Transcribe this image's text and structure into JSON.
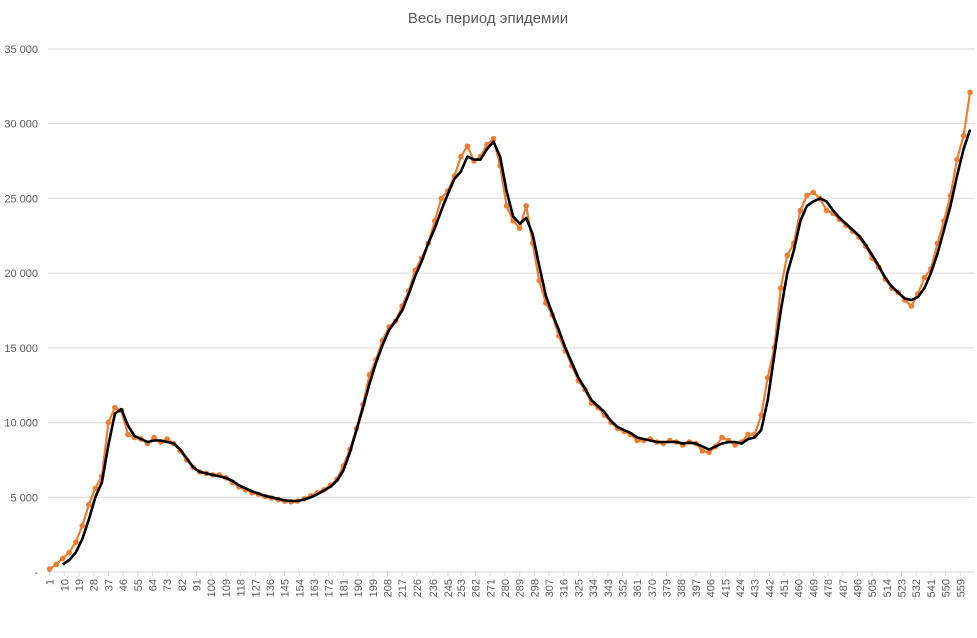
{
  "chart_data": {
    "type": "line",
    "title": "Весь период эпидемии",
    "x": [
      1,
      5,
      9,
      13,
      17,
      21,
      25,
      29,
      33,
      37,
      41,
      45,
      49,
      53,
      57,
      61,
      65,
      69,
      73,
      77,
      81,
      85,
      89,
      93,
      97,
      101,
      105,
      109,
      113,
      117,
      121,
      125,
      129,
      133,
      137,
      141,
      145,
      149,
      153,
      157,
      161,
      165,
      169,
      173,
      177,
      181,
      185,
      189,
      193,
      197,
      201,
      205,
      209,
      213,
      217,
      221,
      225,
      229,
      233,
      237,
      241,
      245,
      249,
      253,
      257,
      261,
      265,
      269,
      273,
      277,
      281,
      285,
      289,
      293,
      297,
      301,
      305,
      309,
      313,
      317,
      321,
      325,
      329,
      333,
      337,
      341,
      345,
      349,
      353,
      357,
      361,
      365,
      369,
      373,
      377,
      381,
      385,
      389,
      393,
      397,
      401,
      405,
      409,
      413,
      417,
      421,
      425,
      429,
      433,
      437,
      441,
      445,
      449,
      453,
      457,
      461,
      465,
      469,
      473,
      477,
      481,
      485,
      489,
      493,
      497,
      501,
      505,
      509,
      513,
      517,
      521,
      525,
      529,
      533,
      537,
      541,
      545,
      549,
      553,
      557,
      561,
      565
    ],
    "series": [
      {
        "color": "#ed7d31",
        "markers": true,
        "values": [
          200,
          500,
          900,
          1300,
          2000,
          3100,
          4500,
          5600,
          6400,
          10000,
          11000,
          10800,
          9200,
          9000,
          8900,
          8600,
          9000,
          8700,
          8900,
          8600,
          8100,
          7500,
          7000,
          6700,
          6600,
          6500,
          6500,
          6300,
          6000,
          5700,
          5500,
          5300,
          5200,
          5050,
          4950,
          4850,
          4750,
          4700,
          4750,
          4900,
          5100,
          5300,
          5500,
          5800,
          6200,
          7100,
          8200,
          9600,
          11200,
          13200,
          14200,
          15500,
          16400,
          16800,
          17800,
          18800,
          20200,
          21000,
          22000,
          23500,
          25000,
          25500,
          26500,
          27800,
          28500,
          27500,
          27800,
          28600,
          29000,
          27200,
          24500,
          23500,
          23000,
          24500,
          22000,
          19500,
          18000,
          17200,
          15800,
          14800,
          13800,
          12800,
          12200,
          11300,
          11000,
          10500,
          10000,
          9600,
          9400,
          9200,
          8800,
          8800,
          8900,
          8700,
          8600,
          8800,
          8700,
          8500,
          8700,
          8600,
          8100,
          8000,
          8400,
          9000,
          8800,
          8500,
          8700,
          9200,
          9200,
          10500,
          13000,
          15000,
          19000,
          21200,
          22000,
          24200,
          25200,
          25400,
          25000,
          24200,
          24000,
          23600,
          23200,
          22800,
          22400,
          21800,
          21000,
          20400,
          19600,
          19000,
          18700,
          18200,
          17800,
          18600,
          19700,
          20300,
          22000,
          23500,
          25200,
          27600,
          29200,
          32100
        ]
      },
      {
        "color": "#000000",
        "markers": false,
        "values": [
          null,
          null,
          500,
          800,
          1300,
          2200,
          3500,
          5000,
          6000,
          8500,
          10600,
          10900,
          9800,
          9100,
          8900,
          8700,
          8800,
          8800,
          8700,
          8600,
          8200,
          7600,
          7000,
          6700,
          6600,
          6500,
          6400,
          6300,
          6100,
          5800,
          5600,
          5400,
          5250,
          5100,
          5000,
          4900,
          4800,
          4750,
          4750,
          4850,
          5000,
          5200,
          5450,
          5700,
          6100,
          6800,
          8000,
          9500,
          11000,
          12600,
          14000,
          15200,
          16200,
          16800,
          17500,
          18600,
          19800,
          20800,
          22000,
          23000,
          24200,
          25300,
          26300,
          26800,
          27800,
          27600,
          27600,
          28300,
          28800,
          27800,
          25500,
          23800,
          23300,
          23700,
          22600,
          20500,
          18500,
          17300,
          16200,
          15000,
          14000,
          13000,
          12300,
          11500,
          11100,
          10700,
          10100,
          9700,
          9500,
          9300,
          9000,
          8900,
          8800,
          8700,
          8700,
          8700,
          8700,
          8600,
          8650,
          8600,
          8400,
          8200,
          8400,
          8600,
          8700,
          8700,
          8600,
          8900,
          9000,
          9500,
          11500,
          14500,
          17500,
          20000,
          21500,
          23500,
          24500,
          24800,
          25000,
          24800,
          24200,
          23700,
          23300,
          22900,
          22500,
          21900,
          21200,
          20500,
          19700,
          19100,
          18700,
          18300,
          18200,
          18400,
          19000,
          20000,
          21300,
          22900,
          24500,
          26500,
          28300,
          29600
        ]
      }
    ],
    "xlim": [
      0,
      568
    ],
    "xticks": [
      1,
      10,
      19,
      28,
      37,
      46,
      55,
      64,
      73,
      82,
      91,
      100,
      109,
      118,
      127,
      136,
      145,
      154,
      163,
      172,
      181,
      190,
      199,
      208,
      217,
      226,
      236,
      245,
      253,
      262,
      271,
      280,
      289,
      298,
      307,
      316,
      325,
      334,
      343,
      352,
      361,
      370,
      379,
      388,
      397,
      406,
      415,
      424,
      433,
      442,
      451,
      460,
      469,
      478,
      487,
      496,
      505,
      514,
      523,
      532,
      541,
      550,
      559
    ],
    "ylim": [
      0,
      35000
    ],
    "yticks": [
      {
        "value": 0,
        "label": "-"
      },
      {
        "value": 5000,
        "label": "5 000"
      },
      {
        "value": 10000,
        "label": "10 000"
      },
      {
        "value": 15000,
        "label": "15 000"
      },
      {
        "value": 20000,
        "label": "20 000"
      },
      {
        "value": 25000,
        "label": "25 000"
      },
      {
        "value": 30000,
        "label": "30 000"
      },
      {
        "value": 35000,
        "label": "35 000"
      }
    ],
    "grid": true
  }
}
